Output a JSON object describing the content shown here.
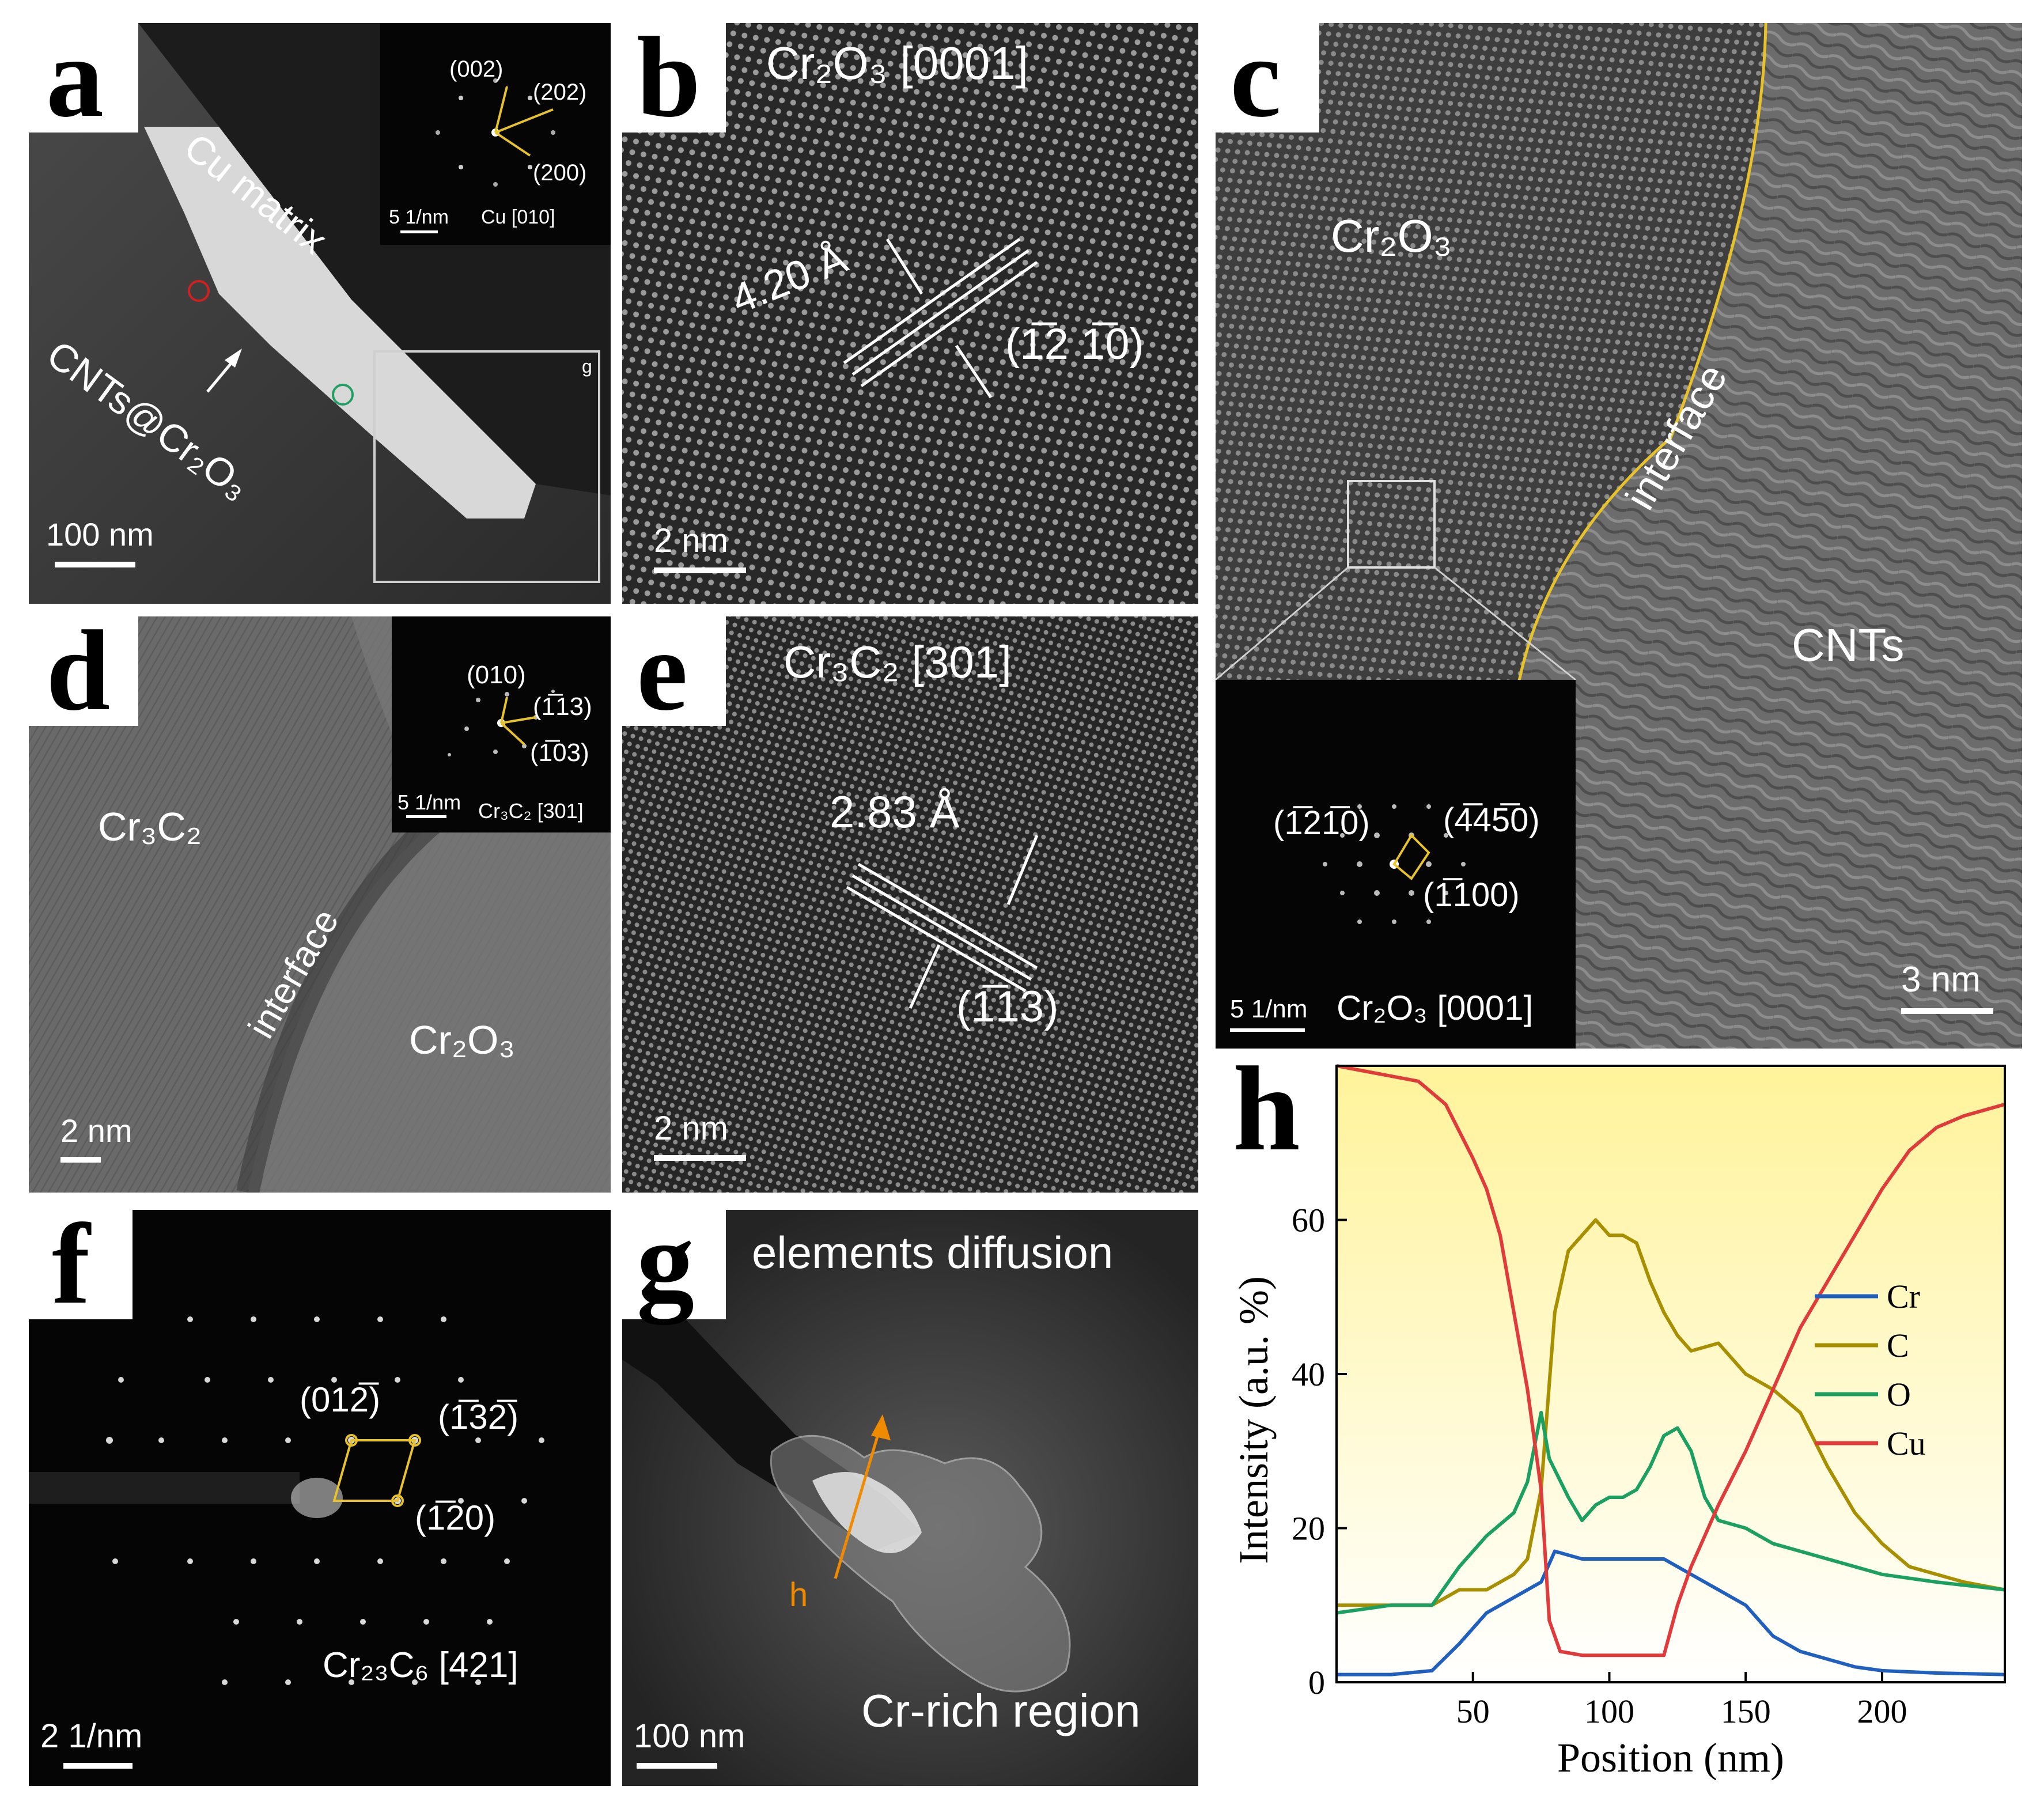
{
  "panels": {
    "a": {
      "label": "a",
      "cu_matrix": "Cu matrix",
      "cnts": "CNTs@Cr₂O₃",
      "scale": "100 nm",
      "box_label": "g",
      "inset": {
        "spots": [
          "(002)",
          "(202)",
          "(200)"
        ],
        "scale": "5 1/nm",
        "zone": "Cu [010]"
      }
    },
    "b": {
      "label": "b",
      "title": "Cr₂O₃ [0001]",
      "spacing": "4.20 Å",
      "plane": "(1̅2 1̅0)",
      "scale": "2 nm"
    },
    "c": {
      "label": "c",
      "phase1": "Cr₂O₃",
      "interface": "interface",
      "phase2": "CNTs",
      "scale": "3 nm",
      "inset": {
        "spots": [
          "(1̅21̅0)",
          "(4̅45̅0)",
          "(1̅100)"
        ],
        "scale": "5 1/nm",
        "zone": "Cr₂O₃ [0001]"
      }
    },
    "d": {
      "label": "d",
      "phase1": "Cr₃C₂",
      "interface": "interface",
      "phase2": "Cr₂O₃",
      "scale": "2 nm",
      "inset": {
        "spots": [
          "(010)",
          "(1̅13)",
          "(1̅03)"
        ],
        "scale": "5 1/nm",
        "zone": "Cr₃C₂ [301]"
      }
    },
    "e": {
      "label": "e",
      "title": "Cr₃C₂ [301]",
      "spacing": "2.83 Å",
      "plane": "(1̅13)",
      "scale": "2 nm"
    },
    "f": {
      "label": "f",
      "spots": [
        "(012̅)",
        "(1̅32̅)",
        "(1̅20)"
      ],
      "zone": "Cr₂₃C₆ [421]",
      "scale": "2 1/nm"
    },
    "g": {
      "label": "g",
      "title": "elements diffusion",
      "line_label": "h",
      "region": "Cr-rich region",
      "scale": "100 nm"
    },
    "h": {
      "label": "h"
    }
  },
  "colors": {
    "Cr": "#1f5fbf",
    "C": "#a88f00",
    "O": "#1aa060",
    "Cu": "#e03a3a",
    "accent": "#e8c22a",
    "arrow": "#f08a00"
  },
  "chart_data": {
    "type": "line",
    "xlabel": "Position (nm)",
    "ylabel": "Intensity (a.u. %)",
    "xlim": [
      0,
      245
    ],
    "ylim": [
      0,
      80
    ],
    "xticks": [
      50,
      100,
      150,
      200
    ],
    "yticks": [
      0,
      20,
      40,
      60
    ],
    "legend_position": "right",
    "series": [
      {
        "name": "Cr",
        "color": "#1f5fbf",
        "x": [
          0,
          20,
          35,
          45,
          55,
          65,
          75,
          80,
          90,
          100,
          110,
          120,
          130,
          140,
          150,
          160,
          170,
          180,
          190,
          200,
          220,
          245
        ],
        "y": [
          1,
          1,
          1.5,
          5,
          9,
          11,
          13,
          17,
          16,
          16,
          16,
          16,
          14,
          12,
          10,
          6,
          4,
          3,
          2,
          1.5,
          1.2,
          1
        ]
      },
      {
        "name": "C",
        "color": "#a88f00",
        "x": [
          0,
          20,
          35,
          45,
          55,
          65,
          70,
          75,
          80,
          85,
          90,
          95,
          100,
          105,
          110,
          115,
          120,
          125,
          130,
          140,
          150,
          160,
          170,
          180,
          190,
          200,
          210,
          220,
          230,
          245
        ],
        "y": [
          10,
          10,
          10,
          12,
          12,
          14,
          16,
          25,
          48,
          56,
          58,
          60,
          58,
          58,
          57,
          52,
          48,
          45,
          43,
          44,
          40,
          38,
          35,
          28,
          22,
          18,
          15,
          14,
          13,
          12
        ]
      },
      {
        "name": "O",
        "color": "#1aa060",
        "x": [
          0,
          20,
          35,
          45,
          55,
          65,
          70,
          75,
          78,
          85,
          90,
          95,
          100,
          105,
          110,
          115,
          120,
          125,
          130,
          135,
          140,
          150,
          160,
          170,
          180,
          200,
          220,
          245
        ],
        "y": [
          9,
          10,
          10,
          15,
          19,
          22,
          26,
          35,
          29,
          24,
          21,
          23,
          24,
          24,
          25,
          28,
          32,
          33,
          30,
          24,
          21,
          20,
          18,
          17,
          16,
          14,
          13,
          12
        ]
      },
      {
        "name": "Cu",
        "color": "#e03a3a",
        "x": [
          0,
          15,
          30,
          40,
          50,
          55,
          60,
          65,
          70,
          75,
          78,
          82,
          90,
          100,
          110,
          120,
          125,
          130,
          140,
          150,
          160,
          170,
          180,
          190,
          200,
          210,
          220,
          230,
          245
        ],
        "y": [
          80,
          79,
          78,
          75,
          68,
          64,
          58,
          48,
          38,
          25,
          8,
          4,
          3.5,
          3.5,
          3.5,
          3.5,
          10,
          15,
          23,
          30,
          38,
          46,
          52,
          58,
          64,
          69,
          72,
          73.5,
          75
        ]
      }
    ]
  }
}
